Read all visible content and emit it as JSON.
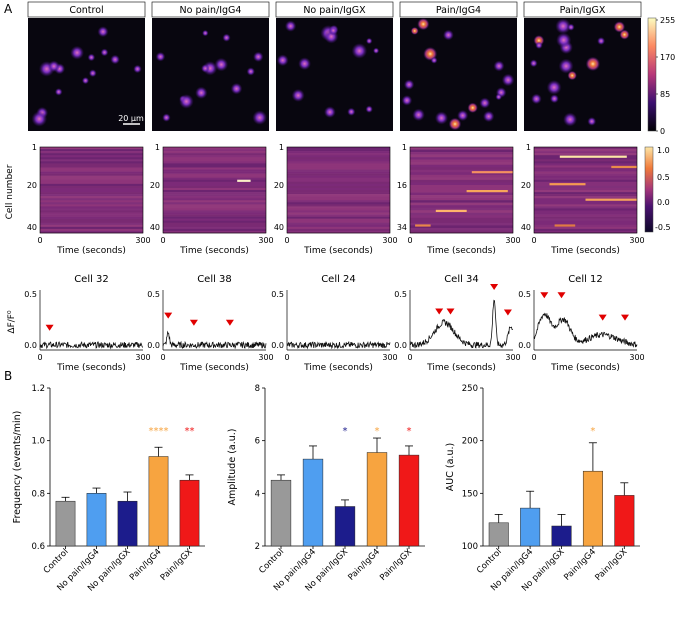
{
  "panel_labels": {
    "a": "A",
    "b": "B"
  },
  "conditions": [
    "Control",
    "No pain/IgG4",
    "No pain/IgGX",
    "Pain/IgG4",
    "Pain/IgGX"
  ],
  "image_row": {
    "scalebar_label": "20 µm",
    "colorbar_ticks": [
      "255",
      "170",
      "85",
      "0"
    ],
    "colors": {
      "background": "#08060f",
      "low": "#3b0f70",
      "mid": "#b73779",
      "high": "#fcfdbf"
    }
  },
  "heatmap_row": {
    "ylabel": "Cell number",
    "xlabel": "Time (seconds)",
    "x_ticks": [
      "0",
      "300"
    ],
    "y_ticks": [
      [
        "1",
        "20",
        "40"
      ],
      [
        "1",
        "20",
        "40"
      ],
      [
        "1",
        "20",
        "40"
      ],
      [
        "1",
        "16",
        "34"
      ],
      [
        "1",
        "20",
        "40"
      ]
    ],
    "colorbar_ticks": [
      "1.0",
      "0.5",
      "0.0",
      "-0.5"
    ]
  },
  "trace_row": {
    "titles": [
      "Cell 32",
      "Cell 38",
      "Cell 24",
      "Cell 34",
      "Cell 12"
    ],
    "ylabel": "ΔF/F⁰",
    "xlabel": "Time (seconds)",
    "y_ticks": [
      "0.5",
      "0.0"
    ],
    "x_ticks": [
      "0",
      "300"
    ],
    "event_times_s": [
      [
        28
      ],
      [
        15,
        90,
        195
      ],
      [],
      [
        85,
        118,
        245,
        285
      ],
      [
        30,
        80,
        200,
        265
      ]
    ]
  },
  "chart_data": [
    {
      "type": "bar",
      "title": "",
      "ylabel": "Frequency (events/min)",
      "categories": [
        "Control",
        "No pain/IgG4",
        "No pain/IgGX",
        "Pain/IgG4",
        "Pain/IgGX"
      ],
      "values": [
        0.77,
        0.8,
        0.77,
        0.94,
        0.85
      ],
      "errors": [
        0.015,
        0.02,
        0.035,
        0.035,
        0.02
      ],
      "ylim": [
        0.6,
        1.2
      ],
      "yticks": [
        "0.6",
        "0.8",
        "1.0",
        "1.2"
      ],
      "significance": [
        "",
        "",
        "",
        "****",
        "**"
      ],
      "colors": [
        "#999999",
        "#4f9ef0",
        "#1c1c8c",
        "#f7a440",
        "#f01818"
      ]
    },
    {
      "type": "bar",
      "title": "",
      "ylabel": "Amplitude (a.u.)",
      "categories": [
        "Control",
        "No pain/IgG4",
        "No pain/IgGX",
        "Pain/IgG4",
        "Pain/IgGX"
      ],
      "values": [
        4.5,
        5.3,
        3.5,
        5.55,
        5.45
      ],
      "errors": [
        0.2,
        0.5,
        0.25,
        0.55,
        0.35
      ],
      "ylim": [
        2,
        8
      ],
      "yticks": [
        "2",
        "4",
        "6",
        "8"
      ],
      "significance": [
        "",
        "",
        "*",
        "*",
        "*"
      ],
      "colors": [
        "#999999",
        "#4f9ef0",
        "#1c1c8c",
        "#f7a440",
        "#f01818"
      ]
    },
    {
      "type": "bar",
      "title": "",
      "ylabel": "AUC (a.u.)",
      "categories": [
        "Control",
        "No pain/IgG4",
        "No pain/IgGX",
        "Pain/IgG4",
        "Pain/IgGX"
      ],
      "values": [
        122,
        136,
        119,
        171,
        148
      ],
      "errors": [
        8,
        16,
        11,
        27,
        12
      ],
      "ylim": [
        100,
        250
      ],
      "yticks": [
        "100",
        "150",
        "200",
        "250"
      ],
      "significance": [
        "",
        "",
        "",
        "*",
        ""
      ],
      "colors": [
        "#999999",
        "#4f9ef0",
        "#1c1c8c",
        "#f7a440",
        "#f01818"
      ]
    }
  ]
}
